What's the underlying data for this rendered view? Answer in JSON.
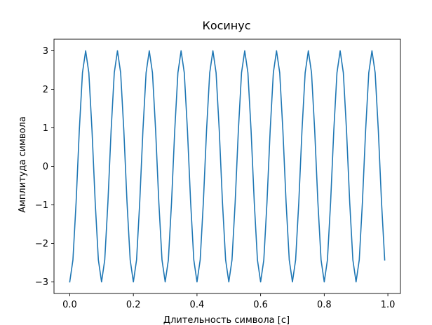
{
  "chart_data": {
    "type": "line",
    "title": "Косинус",
    "xlabel": "Длительность символа [с]",
    "ylabel": "Амплитуда символа",
    "xlim": [
      -0.0495,
      1.0395
    ],
    "ylim": [
      -3.3,
      3.3
    ],
    "grid": false,
    "x_ticks": [
      0.0,
      0.2,
      0.4,
      0.6,
      0.8,
      1.0
    ],
    "x_tick_labels": [
      "0.0",
      "0.2",
      "0.4",
      "0.6",
      "0.8",
      "1.0"
    ],
    "y_ticks": [
      -3,
      -2,
      -1,
      0,
      1,
      2,
      3
    ],
    "y_tick_labels": [
      "−3",
      "−2",
      "−1",
      "0",
      "1",
      "2",
      "3"
    ],
    "line_color": "#1f77b4",
    "series": [
      {
        "x": [
          0.0,
          0.01,
          0.02,
          0.03,
          0.04,
          0.05,
          0.06,
          0.07,
          0.08,
          0.09,
          0.1,
          0.11,
          0.12,
          0.13,
          0.14,
          0.15,
          0.16,
          0.17,
          0.18,
          0.19,
          0.2,
          0.21,
          0.22,
          0.23,
          0.24,
          0.25,
          0.26,
          0.27,
          0.28,
          0.29,
          0.3,
          0.31,
          0.32,
          0.33,
          0.34,
          0.35,
          0.36,
          0.37,
          0.38,
          0.39,
          0.4,
          0.41,
          0.42,
          0.43,
          0.44,
          0.45,
          0.46,
          0.47,
          0.48,
          0.49,
          0.5,
          0.51,
          0.52,
          0.53,
          0.54,
          0.55,
          0.56,
          0.57,
          0.58,
          0.59,
          0.6,
          0.61,
          0.62,
          0.63,
          0.64,
          0.65,
          0.66,
          0.67,
          0.68,
          0.69,
          0.7,
          0.71,
          0.72,
          0.73,
          0.74,
          0.75,
          0.76,
          0.77,
          0.78,
          0.79,
          0.8,
          0.81,
          0.82,
          0.83,
          0.84,
          0.85,
          0.86,
          0.87,
          0.88,
          0.89,
          0.9,
          0.91,
          0.92,
          0.93,
          0.94,
          0.95,
          0.96,
          0.97,
          0.98,
          0.99
        ],
        "values": [
          -3.0,
          -2.43,
          -0.93,
          0.93,
          2.43,
          3.0,
          2.43,
          0.93,
          -0.93,
          -2.43,
          -3.0,
          -2.43,
          -0.93,
          0.93,
          2.43,
          3.0,
          2.43,
          0.93,
          -0.93,
          -2.43,
          -3.0,
          -2.43,
          -0.93,
          0.93,
          2.43,
          3.0,
          2.43,
          0.93,
          -0.93,
          -2.43,
          -3.0,
          -2.43,
          -0.93,
          0.93,
          2.43,
          3.0,
          2.43,
          0.93,
          -0.93,
          -2.43,
          -3.0,
          -2.43,
          -0.93,
          0.93,
          2.43,
          3.0,
          2.43,
          0.93,
          -0.93,
          -2.43,
          -3.0,
          -2.43,
          -0.93,
          0.93,
          2.43,
          3.0,
          2.43,
          0.93,
          -0.93,
          -2.43,
          -3.0,
          -2.43,
          -0.93,
          0.93,
          2.43,
          3.0,
          2.43,
          0.93,
          -0.93,
          -2.43,
          -3.0,
          -2.43,
          -0.93,
          0.93,
          2.43,
          3.0,
          2.43,
          0.93,
          -0.93,
          -2.43,
          -3.0,
          -2.43,
          -0.93,
          0.93,
          2.43,
          3.0,
          2.43,
          0.93,
          -0.93,
          -2.43,
          -3.0,
          -2.43,
          -0.93,
          0.93,
          2.43,
          3.0,
          2.43,
          0.93,
          -0.93,
          -2.43
        ]
      }
    ]
  }
}
